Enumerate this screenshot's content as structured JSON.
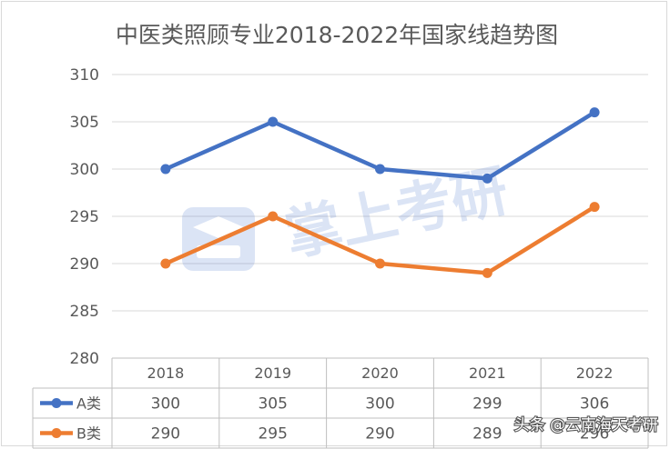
{
  "chart_data": {
    "type": "line",
    "title": "中医类照顾专业2018-2022年国家线趋势图",
    "categories": [
      "2018",
      "2019",
      "2020",
      "2021",
      "2022"
    ],
    "series": [
      {
        "name": "A类",
        "values": [
          300,
          305,
          300,
          299,
          306
        ],
        "color": "#4472c4"
      },
      {
        "name": "B类",
        "values": [
          290,
          295,
          290,
          289,
          296
        ],
        "color": "#ed7d31"
      }
    ],
    "ylim": [
      280,
      310
    ],
    "yticks": [
      "280",
      "285",
      "290",
      "295",
      "300",
      "305",
      "310"
    ],
    "grid": true,
    "legend": "data-table",
    "table_values": [
      [
        "300",
        "305",
        "300",
        "299",
        "306"
      ],
      [
        "290",
        "295",
        "290",
        "289",
        "296"
      ]
    ]
  },
  "watermark": {
    "text": "掌上考研",
    "icon": "graduation-cap-book-icon"
  },
  "attribution": {
    "text": "头条 @云南海天考研"
  }
}
